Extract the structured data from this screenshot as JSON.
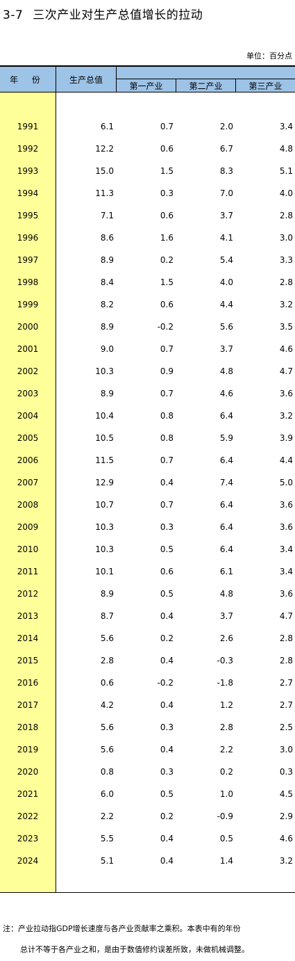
{
  "title": {
    "number": "3-7",
    "text": "三次产业对生产总值增长的拉动"
  },
  "unit": "单位：百分点",
  "headers": {
    "year": "年 份",
    "gdp": "生产总值",
    "primary": "第一产业",
    "secondary": "第二产业",
    "tertiary": "第三产业"
  },
  "rows": [
    [
      "1991",
      "6.1",
      "0.7",
      "2.0",
      "3.4"
    ],
    [
      "1992",
      "12.2",
      "0.6",
      "6.7",
      "4.8"
    ],
    [
      "1993",
      "15.0",
      "1.5",
      "8.3",
      "5.1"
    ],
    [
      "1994",
      "11.3",
      "0.3",
      "7.0",
      "4.0"
    ],
    [
      "1995",
      "7.1",
      "0.6",
      "3.7",
      "2.8"
    ],
    [
      "1996",
      "8.6",
      "1.6",
      "4.1",
      "3.0"
    ],
    [
      "1997",
      "8.9",
      "0.2",
      "5.4",
      "3.3"
    ],
    [
      "1998",
      "8.4",
      "1.5",
      "4.0",
      "2.8"
    ],
    [
      "1999",
      "8.2",
      "0.6",
      "4.4",
      "3.2"
    ],
    [
      "2000",
      "8.9",
      "-0.2",
      "5.6",
      "3.5"
    ],
    [
      "2001",
      "9.0",
      "0.7",
      "3.7",
      "4.6"
    ],
    [
      "2002",
      "10.3",
      "0.9",
      "4.8",
      "4.7"
    ],
    [
      "2003",
      "8.9",
      "0.7",
      "4.6",
      "3.6"
    ],
    [
      "2004",
      "10.4",
      "0.8",
      "6.4",
      "3.2"
    ],
    [
      "2005",
      "10.5",
      "0.8",
      "5.9",
      "3.9"
    ],
    [
      "2006",
      "11.5",
      "0.7",
      "6.4",
      "4.4"
    ],
    [
      "2007",
      "12.9",
      "0.4",
      "7.4",
      "5.0"
    ],
    [
      "2008",
      "10.7",
      "0.7",
      "6.4",
      "3.6"
    ],
    [
      "2009",
      "10.3",
      "0.3",
      "6.4",
      "3.6"
    ],
    [
      "2010",
      "10.3",
      "0.5",
      "6.4",
      "3.4"
    ],
    [
      "2011",
      "10.1",
      "0.6",
      "6.1",
      "3.4"
    ],
    [
      "2012",
      "8.9",
      "0.5",
      "4.8",
      "3.6"
    ],
    [
      "2013",
      "8.7",
      "0.4",
      "3.7",
      "4.7"
    ],
    [
      "2014",
      "5.6",
      "0.2",
      "2.6",
      "2.8"
    ],
    [
      "2015",
      "2.8",
      "0.4",
      "-0.3",
      "2.8"
    ],
    [
      "2016",
      "0.6",
      "-0.2",
      "-1.8",
      "2.7"
    ],
    [
      "2017",
      "4.2",
      "0.4",
      "1.2",
      "2.7"
    ],
    [
      "2018",
      "5.6",
      "0.3",
      "2.8",
      "2.5"
    ],
    [
      "2019",
      "5.6",
      "0.4",
      "2.2",
      "3.0"
    ],
    [
      "2020",
      "0.8",
      "0.3",
      "0.2",
      "0.3"
    ],
    [
      "2021",
      "6.0",
      "0.5",
      "1.0",
      "4.5"
    ],
    [
      "2022",
      "2.2",
      "0.2",
      "-0.9",
      "2.9"
    ],
    [
      "2023",
      "5.5",
      "0.4",
      "0.5",
      "4.6"
    ],
    [
      "2024",
      "5.1",
      "0.4",
      "1.4",
      "3.2"
    ]
  ],
  "notes": [
    "注：产业拉动指GDP增长速度与各产业贡献率之乘积。本表中有的年份",
    "总计不等于各产业之和，是由于数值修约误差所致，未做机械调整。"
  ]
}
